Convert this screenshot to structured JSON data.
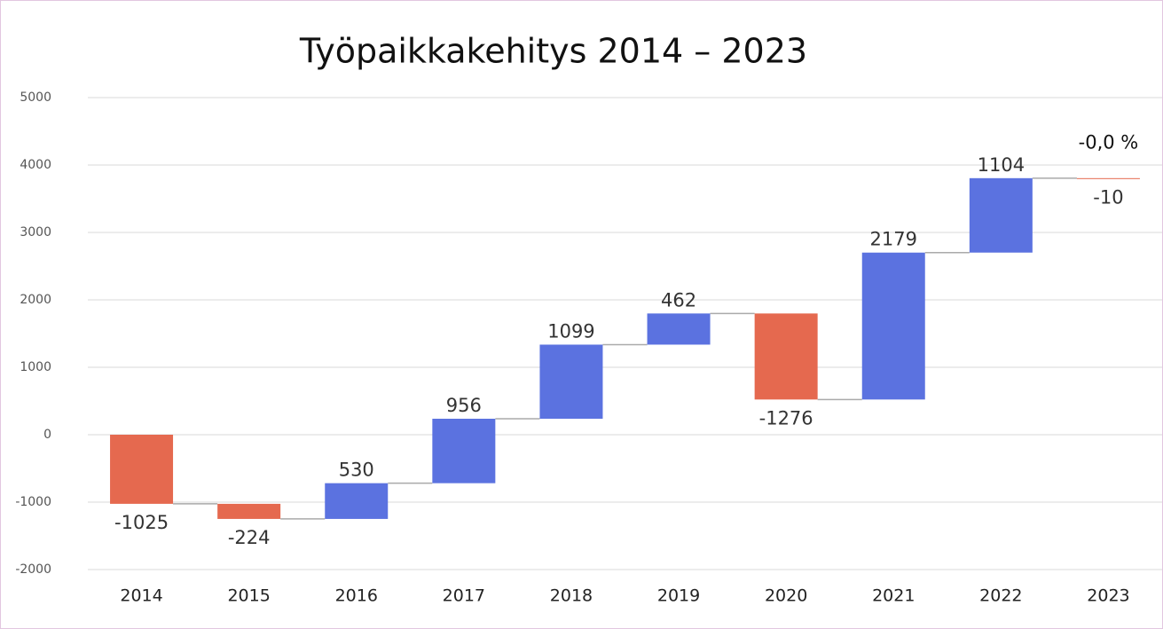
{
  "chart_data": {
    "type": "waterfall",
    "title": "Työpaikkakehitys 2014 – 2023",
    "categories": [
      "2014",
      "2015",
      "2016",
      "2017",
      "2018",
      "2019",
      "2020",
      "2021",
      "2022",
      "2023"
    ],
    "values": [
      -1025,
      -224,
      530,
      956,
      1099,
      462,
      -1276,
      2179,
      1104,
      -10
    ],
    "colors": {
      "increase": "#5b72e0",
      "decrease": "#e5694f"
    },
    "ylim": [
      -2000,
      5000
    ],
    "yticks": [
      -2000,
      -1000,
      0,
      1000,
      2000,
      3000,
      4000,
      5000
    ],
    "grid": true,
    "annotation": "-0,0 %"
  }
}
